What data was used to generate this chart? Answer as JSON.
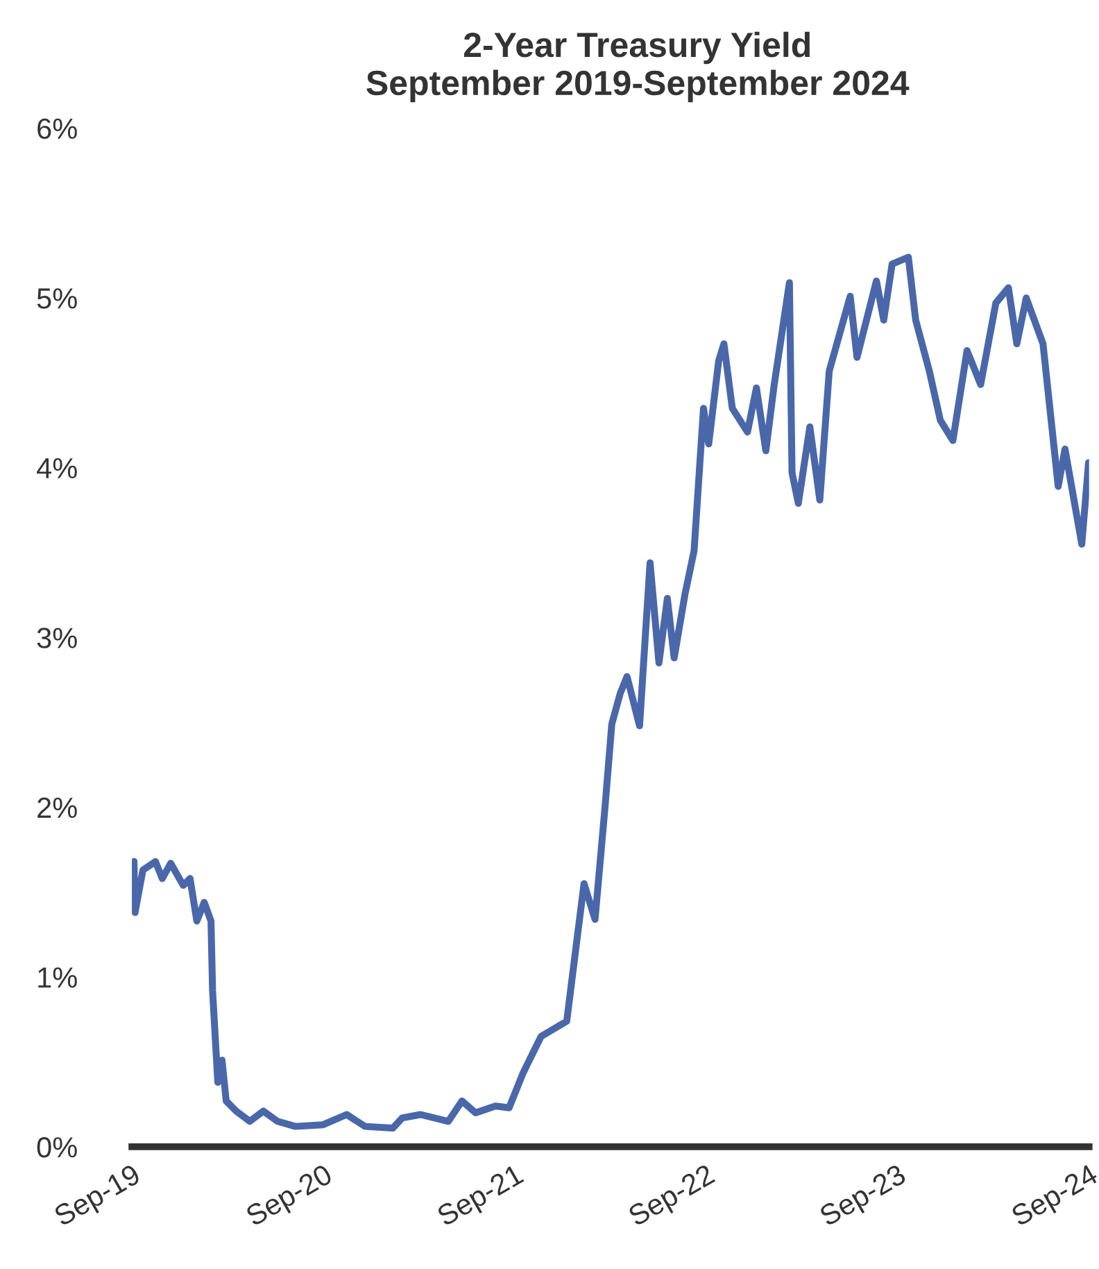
{
  "chart_data": {
    "type": "line",
    "title": "2-Year Treasury Yield",
    "subtitle": "September 2019-September 2024",
    "x": [
      "2019-09-02",
      "2019-09-05",
      "2019-09-07",
      "2019-09-22",
      "2019-10-16",
      "2019-10-29",
      "2019-11-14",
      "2019-12-08",
      "2019-12-21",
      "2020-01-03",
      "2020-01-17",
      "2020-01-30",
      "2020-02-02",
      "2020-02-12",
      "2020-02-20",
      "2020-02-28",
      "2020-03-18",
      "2020-04-13",
      "2020-05-09",
      "2020-06-05",
      "2020-07-09",
      "2020-08-31",
      "2020-10-15",
      "2020-11-19",
      "2021-01-11",
      "2021-01-29",
      "2021-03-05",
      "2021-04-27",
      "2021-05-23",
      "2021-06-18",
      "2021-07-26",
      "2021-08-21",
      "2021-09-16",
      "2021-09-27",
      "2021-10-21",
      "2021-12-09",
      "2021-12-26",
      "2022-01-11",
      "2022-02-01",
      "2022-02-20",
      "2022-03-05",
      "2022-03-21",
      "2022-04-03",
      "2022-04-27",
      "2022-05-17",
      "2022-06-03",
      "2022-06-19",
      "2022-07-02",
      "2022-07-23",
      "2022-08-09",
      "2022-08-27",
      "2022-09-06",
      "2022-09-25",
      "2022-10-05",
      "2022-10-21",
      "2022-11-19",
      "2022-12-06",
      "2022-12-24",
      "2023-01-09",
      "2023-02-07",
      "2023-02-12",
      "2023-02-24",
      "2023-03-18",
      "2023-04-06",
      "2023-04-24",
      "2023-06-03",
      "2023-06-16",
      "2023-07-23",
      "2023-08-06",
      "2023-08-22",
      "2023-09-22",
      "2023-10-06",
      "2023-11-01",
      "2023-11-22",
      "2023-12-16",
      "2024-01-12",
      "2024-02-07",
      "2024-03-07",
      "2024-03-31",
      "2024-04-16",
      "2024-05-04",
      "2024-06-05",
      "2024-07-04",
      "2024-07-17",
      "2024-08-18",
      "2024-08-31"
    ],
    "series": [
      {
        "color": "#4a67aa",
        "values": [
          1.55,
          1.68,
          1.38,
          1.63,
          1.68,
          1.58,
          1.67,
          1.54,
          1.58,
          1.33,
          1.44,
          1.33,
          0.92,
          0.38,
          0.51,
          0.27,
          0.21,
          0.15,
          0.21,
          0.15,
          0.12,
          0.13,
          0.19,
          0.12,
          0.11,
          0.17,
          0.19,
          0.15,
          0.27,
          0.2,
          0.24,
          0.23,
          0.43,
          0.5,
          0.65,
          0.74,
          1.16,
          1.55,
          1.34,
          2.0,
          2.49,
          2.67,
          2.77,
          2.48,
          3.44,
          2.85,
          3.23,
          2.88,
          3.26,
          3.51,
          4.35,
          4.14,
          4.63,
          4.73,
          4.35,
          4.21,
          4.47,
          4.1,
          4.49,
          5.09,
          3.97,
          3.79,
          4.24,
          3.81,
          4.57,
          5.01,
          4.65,
          5.1,
          4.87,
          5.2,
          5.24,
          4.87,
          4.57,
          4.28,
          4.16,
          4.69,
          4.49,
          4.97,
          5.06,
          4.73,
          5.0,
          4.73,
          3.89,
          4.11,
          3.55,
          4.03
        ]
      }
    ],
    "xlim": [
      "2019-09-01",
      "2024-09-01"
    ],
    "xticks": [
      {
        "value": "2019-09-01",
        "label": "Sep-19"
      },
      {
        "value": "2020-09-01",
        "label": "Sep-20"
      },
      {
        "value": "2021-09-01",
        "label": "Sep-21"
      },
      {
        "value": "2022-09-01",
        "label": "Sep-22"
      },
      {
        "value": "2023-09-01",
        "label": "Sep-23"
      },
      {
        "value": "2024-09-01",
        "label": "Sep-24"
      }
    ],
    "ylim": [
      0,
      6
    ],
    "yticks": [
      {
        "value": 0,
        "label": "0%"
      },
      {
        "value": 1,
        "label": "1%"
      },
      {
        "value": 2,
        "label": "2%"
      },
      {
        "value": 3,
        "label": "3%"
      },
      {
        "value": 4,
        "label": "4%"
      },
      {
        "value": 5,
        "label": "5%"
      },
      {
        "value": 6,
        "label": "6%"
      }
    ],
    "grid": false,
    "legend": false,
    "line_style": "solid",
    "marker": "none"
  }
}
